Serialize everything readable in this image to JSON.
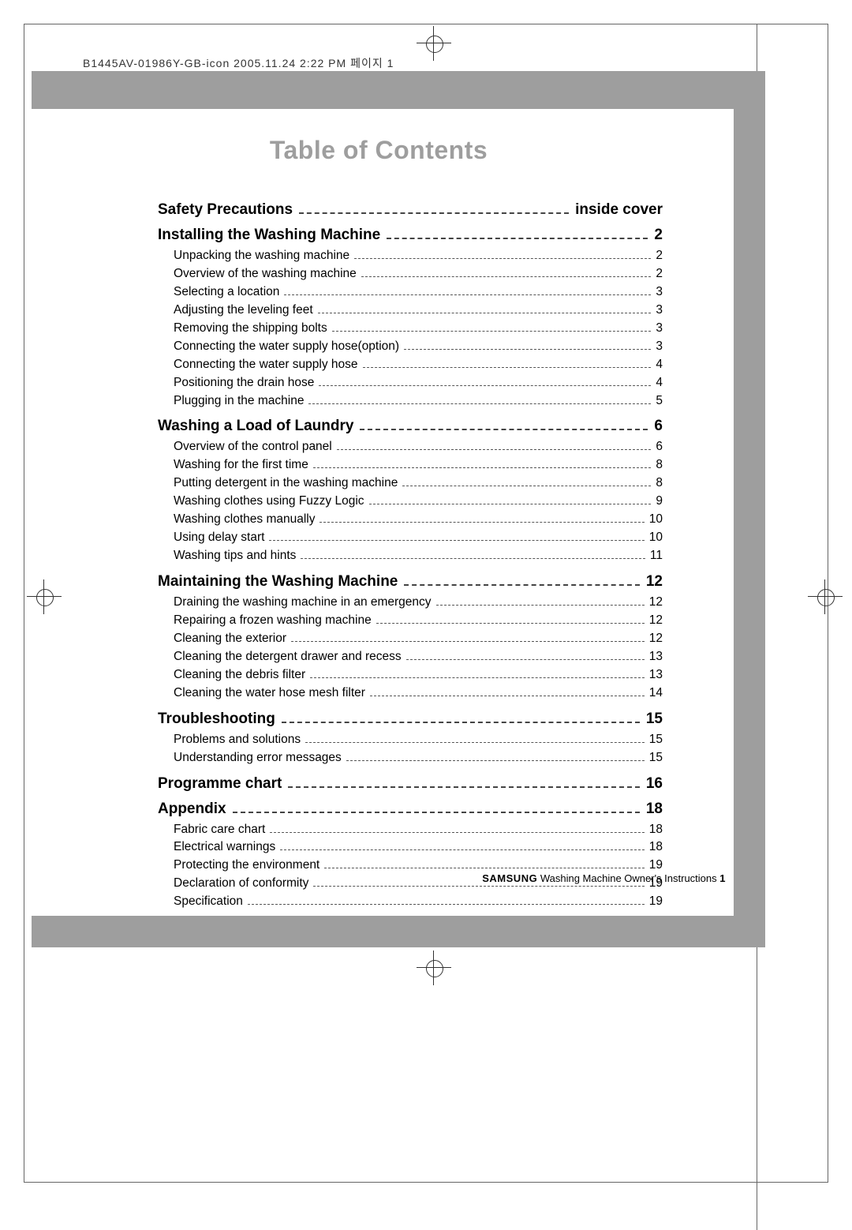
{
  "header_text": "B1445AV-01986Y-GB-icon  2005.11.24 2:22 PM  페이지 1",
  "title": "Table of Contents",
  "colors": {
    "gray_bar": "#9e9e9e",
    "title_color": "#9e9e9e",
    "text_color": "#000000",
    "background": "#ffffff"
  },
  "sections": [
    {
      "title": "Safety Precautions",
      "page": "inside cover",
      "subs": []
    },
    {
      "title": "Installing the Washing Machine",
      "page": "2",
      "subs": [
        {
          "title": "Unpacking the washing machine",
          "page": "2"
        },
        {
          "title": "Overview of the washing machine",
          "page": "2"
        },
        {
          "title": "Selecting a location",
          "page": "3"
        },
        {
          "title": "Adjusting the leveling feet",
          "page": "3"
        },
        {
          "title": "Removing the shipping bolts",
          "page": "3"
        },
        {
          "title": "Connecting the water supply hose(option)",
          "page": "3"
        },
        {
          "title": "Connecting the water supply hose",
          "page": "4"
        },
        {
          "title": "Positioning the drain hose",
          "page": "4"
        },
        {
          "title": "Plugging in the machine",
          "page": "5"
        }
      ]
    },
    {
      "title": "Washing a Load of Laundry",
      "page": "6",
      "subs": [
        {
          "title": "Overview of the control panel",
          "page": "6"
        },
        {
          "title": "Washing for the first time",
          "page": "8"
        },
        {
          "title": "Putting detergent in the washing machine",
          "page": "8"
        },
        {
          "title": "Washing clothes using Fuzzy Logic",
          "page": "9"
        },
        {
          "title": "Washing clothes manually",
          "page": "10"
        },
        {
          "title": "Using delay start",
          "page": "10"
        },
        {
          "title": "Washing tips and hints",
          "page": "11"
        }
      ]
    },
    {
      "title": "Maintaining the Washing Machine",
      "page": "12",
      "subs": [
        {
          "title": "Draining the washing machine in an emergency",
          "page": "12"
        },
        {
          "title": "Repairing a frozen washing machine",
          "page": "12"
        },
        {
          "title": "Cleaning the exterior",
          "page": "12"
        },
        {
          "title": "Cleaning the detergent drawer and recess",
          "page": "13"
        },
        {
          "title": "Cleaning the debris filter",
          "page": "13"
        },
        {
          "title": "Cleaning the water hose mesh filter",
          "page": "14"
        }
      ]
    },
    {
      "title": "Troubleshooting",
      "page": "15",
      "subs": [
        {
          "title": "Problems and solutions",
          "page": "15"
        },
        {
          "title": "Understanding error messages",
          "page": "15"
        }
      ]
    },
    {
      "title": "Programme chart",
      "page": "16",
      "subs": []
    },
    {
      "title": "Appendix",
      "page": "18",
      "subs": [
        {
          "title": "Fabric care chart",
          "page": "18"
        },
        {
          "title": "Electrical warnings",
          "page": "18"
        },
        {
          "title": "Protecting the environment",
          "page": "19"
        },
        {
          "title": "Declaration of conformity",
          "page": "19"
        },
        {
          "title": "Specification",
          "page": "19"
        }
      ]
    }
  ],
  "footer": {
    "brand": "SAMSUNG",
    "text": "Washing Machine Owner's Instructions",
    "page_number": "1"
  }
}
